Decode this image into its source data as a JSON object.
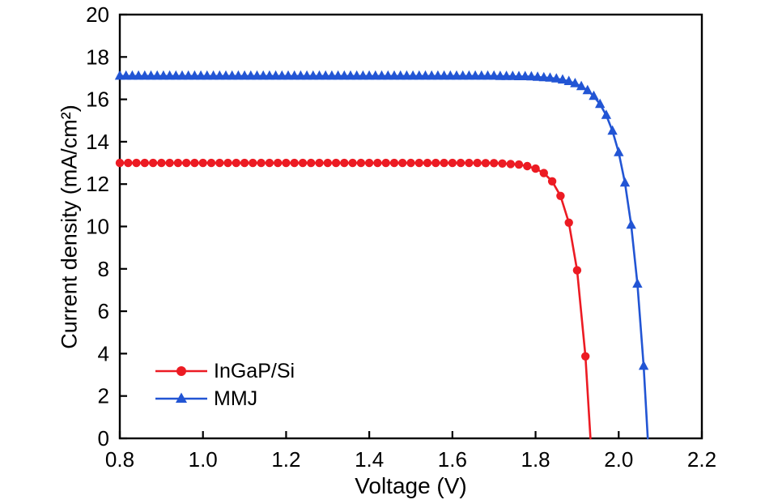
{
  "chart_data": {
    "type": "line",
    "title": "",
    "xlabel": "Voltage (V)",
    "ylabel": "Current density (mA/cm²)",
    "xlim": [
      0.8,
      2.2
    ],
    "ylim": [
      0,
      20
    ],
    "grid": false,
    "legend_position": "lower-left",
    "frame": "full-box",
    "x_ticks": [
      0.8,
      1.0,
      1.2,
      1.4,
      1.6,
      1.8,
      2.0,
      2.2
    ],
    "x_tick_labels": [
      "0.8",
      "1.0",
      "1.2",
      "1.4",
      "1.6",
      "1.8",
      "2.0",
      "2.2"
    ],
    "y_ticks": [
      0,
      2,
      4,
      6,
      8,
      10,
      12,
      14,
      16,
      18,
      20
    ],
    "y_tick_labels": [
      "0",
      "2",
      "4",
      "6",
      "8",
      "10",
      "12",
      "14",
      "16",
      "18",
      "20"
    ],
    "series": [
      {
        "name": "InGaP/Si",
        "color": "#ec1b23",
        "marker": "circle",
        "jsc_mA_cm2": 13.0,
        "voc_V": 1.93,
        "x": [
          0.8,
          0.82,
          0.84,
          0.86,
          0.88,
          0.9,
          0.92,
          0.94,
          0.96,
          0.98,
          1.0,
          1.02,
          1.04,
          1.06,
          1.08,
          1.1,
          1.12,
          1.14,
          1.16,
          1.18,
          1.2,
          1.22,
          1.24,
          1.26,
          1.28,
          1.3,
          1.32,
          1.34,
          1.36,
          1.38,
          1.4,
          1.42,
          1.44,
          1.46,
          1.48,
          1.5,
          1.52,
          1.54,
          1.56,
          1.58,
          1.6,
          1.62,
          1.64,
          1.66,
          1.68,
          1.7,
          1.72,
          1.74,
          1.76,
          1.78,
          1.8,
          1.82,
          1.84,
          1.86,
          1.88,
          1.9,
          1.92,
          1.932
        ],
        "y": [
          13.0,
          13.0,
          13.0,
          13.0,
          13.0,
          13.0,
          13.0,
          13.0,
          13.0,
          13.0,
          13.0,
          13.0,
          13.0,
          13.0,
          13.0,
          13.0,
          13.0,
          13.0,
          13.0,
          13.0,
          13.0,
          13.0,
          13.0,
          13.0,
          13.0,
          13.0,
          13.0,
          13.0,
          13.0,
          13.0,
          13.0,
          13.0,
          13.0,
          13.0,
          13.0,
          13.0,
          13.0,
          13.0,
          13.0,
          13.0,
          13.0,
          13.0,
          13.0,
          13.0,
          12.99,
          12.99,
          12.97,
          12.95,
          12.92,
          12.85,
          12.73,
          12.52,
          12.13,
          11.44,
          10.18,
          7.93,
          3.87,
          0
        ]
      },
      {
        "name": "MMJ",
        "color": "#2255d4",
        "marker": "triangle",
        "jsc_mA_cm2": 17.1,
        "voc_V": 2.07,
        "x": [
          0.8,
          0.815,
          0.83,
          0.845,
          0.86,
          0.875,
          0.89,
          0.905,
          0.92,
          0.935,
          0.95,
          0.965,
          0.98,
          0.995,
          1.01,
          1.025,
          1.04,
          1.055,
          1.07,
          1.085,
          1.1,
          1.115,
          1.13,
          1.145,
          1.16,
          1.175,
          1.19,
          1.205,
          1.22,
          1.235,
          1.25,
          1.265,
          1.28,
          1.295,
          1.31,
          1.325,
          1.34,
          1.355,
          1.37,
          1.385,
          1.4,
          1.415,
          1.43,
          1.445,
          1.46,
          1.475,
          1.49,
          1.505,
          1.52,
          1.535,
          1.55,
          1.565,
          1.58,
          1.595,
          1.61,
          1.625,
          1.64,
          1.655,
          1.67,
          1.685,
          1.7,
          1.715,
          1.73,
          1.745,
          1.76,
          1.775,
          1.79,
          1.805,
          1.82,
          1.835,
          1.85,
          1.865,
          1.88,
          1.895,
          1.91,
          1.925,
          1.94,
          1.955,
          1.97,
          1.985,
          2.0,
          2.015,
          2.03,
          2.045,
          2.06,
          2.07
        ],
        "y": [
          17.1,
          17.1,
          17.1,
          17.1,
          17.1,
          17.1,
          17.1,
          17.1,
          17.1,
          17.1,
          17.1,
          17.1,
          17.1,
          17.1,
          17.1,
          17.1,
          17.1,
          17.1,
          17.1,
          17.1,
          17.1,
          17.1,
          17.1,
          17.1,
          17.1,
          17.1,
          17.1,
          17.1,
          17.1,
          17.1,
          17.1,
          17.1,
          17.1,
          17.1,
          17.1,
          17.1,
          17.1,
          17.1,
          17.1,
          17.1,
          17.1,
          17.1,
          17.1,
          17.1,
          17.1,
          17.1,
          17.1,
          17.1,
          17.1,
          17.1,
          17.1,
          17.1,
          17.1,
          17.1,
          17.1,
          17.1,
          17.1,
          17.1,
          17.1,
          17.1,
          17.1,
          17.09,
          17.09,
          17.09,
          17.08,
          17.08,
          17.07,
          17.05,
          17.03,
          17.01,
          16.97,
          16.92,
          16.85,
          16.75,
          16.61,
          16.42,
          16.15,
          15.77,
          15.25,
          14.51,
          13.49,
          12.06,
          10.07,
          7.29,
          3.41,
          0
        ]
      }
    ]
  }
}
